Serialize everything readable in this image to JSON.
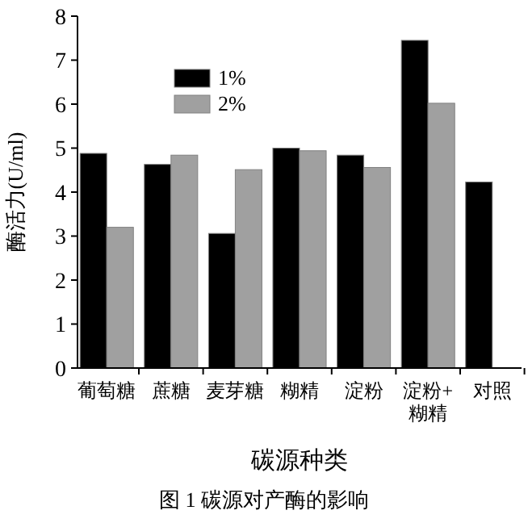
{
  "chart_data": {
    "type": "bar",
    "ylabel": "酶活力(U/ml)",
    "xlabel": "碳源种类",
    "categories": [
      "葡萄糖",
      "蔗糖",
      "麦芽糖",
      "糊精",
      "淀粉",
      "淀粉+\n糊精",
      "对照"
    ],
    "series": [
      {
        "name": "1%",
        "color": "#000000",
        "values": [
          4.88,
          4.63,
          3.06,
          5.0,
          4.84,
          7.45,
          4.23
        ]
      },
      {
        "name": "2%",
        "color": "#a0a0a0",
        "values": [
          3.2,
          4.84,
          4.51,
          4.94,
          4.56,
          6.02,
          null
        ]
      }
    ],
    "ylim": [
      0,
      8
    ],
    "yticks": [
      0,
      1,
      2,
      3,
      4,
      5,
      6,
      7,
      8
    ],
    "legend": "top left",
    "grid": false,
    "annotations": [
      "图 1    碳源对产酶的影响"
    ]
  }
}
